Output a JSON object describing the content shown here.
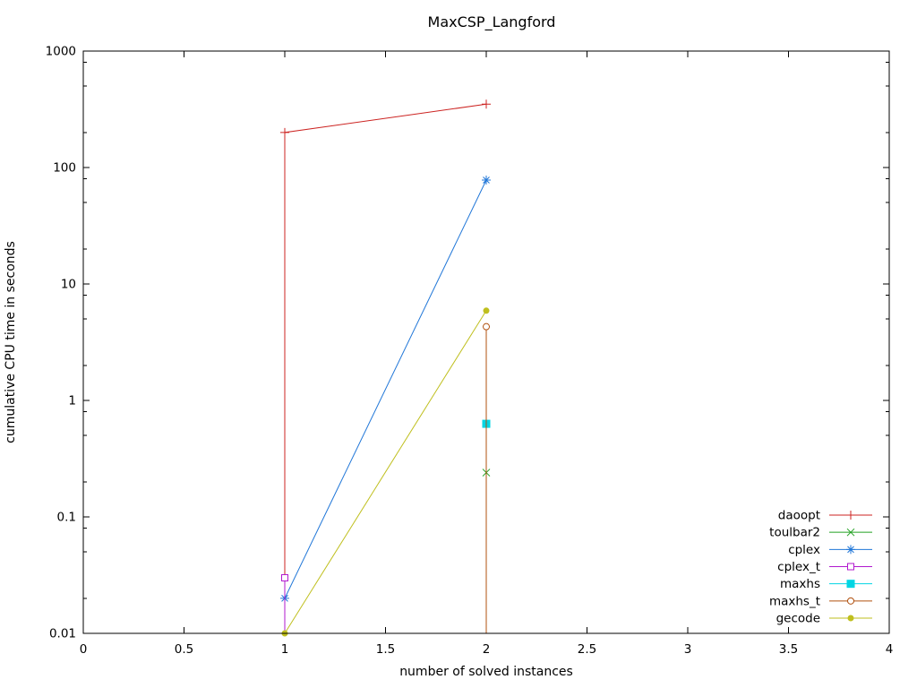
{
  "window": {
    "background": "#ffffff",
    "foreground": "#000000"
  },
  "chart_data": {
    "type": "line",
    "title": "MaxCSP_Langford",
    "xlabel": "number of solved instances",
    "ylabel": "cumulative CPU time in seconds",
    "x_axis": {
      "scale": "linear",
      "min": 0,
      "max": 4,
      "major_ticks": [
        0,
        0.5,
        1,
        1.5,
        2,
        2.5,
        3,
        3.5,
        4
      ],
      "tick_labels": [
        "0",
        "0.5",
        "1",
        "1.5",
        "2",
        "2.5",
        "3",
        "3.5",
        "4"
      ],
      "grid": false
    },
    "y_axis": {
      "scale": "log",
      "min": 0.01,
      "max": 1000,
      "major_ticks": [
        0.01,
        0.1,
        1,
        10,
        100,
        1000
      ],
      "tick_labels": [
        "0.01",
        "0.1",
        "1",
        "10",
        "100",
        "1000"
      ],
      "minor_tick_multipliers": [
        2,
        5,
        8
      ],
      "grid": false
    },
    "legend": {
      "position": "inside-bottom-right",
      "entries": [
        "daoopt",
        "toulbar2",
        "cplex",
        "cplex_t",
        "maxhs",
        "maxhs_t",
        "gecode"
      ]
    },
    "series": [
      {
        "name": "daoopt",
        "color": "#cc2321",
        "marker": "plus",
        "points": [
          [
            1,
            200
          ],
          [
            2,
            350
          ]
        ],
        "drop_line_x": 1
      },
      {
        "name": "toulbar2",
        "color": "#20a020",
        "marker": "cross",
        "points": [
          [
            2,
            0.24
          ]
        ],
        "drop_line_x": 2
      },
      {
        "name": "cplex",
        "color": "#2177d8",
        "marker": "asterisk",
        "points": [
          [
            1,
            0.02
          ],
          [
            2,
            78
          ]
        ],
        "drop_line_x": 1
      },
      {
        "name": "cplex_t",
        "color": "#b119cf",
        "marker": "open-square",
        "points": [
          [
            1,
            0.03
          ]
        ],
        "drop_line_x": 1
      },
      {
        "name": "maxhs",
        "color": "#00d5e3",
        "marker": "filled-square",
        "points": [
          [
            2,
            0.63
          ]
        ],
        "drop_line_x": 2
      },
      {
        "name": "maxhs_t",
        "color": "#b0500f",
        "marker": "open-circle",
        "points": [
          [
            2,
            4.3
          ]
        ],
        "drop_line_x": 2
      },
      {
        "name": "gecode",
        "color": "#bfbf1d",
        "marker": "filled-circle",
        "points": [
          [
            1,
            0.01
          ],
          [
            2,
            5.9
          ]
        ],
        "drop_line_x": null
      }
    ]
  }
}
